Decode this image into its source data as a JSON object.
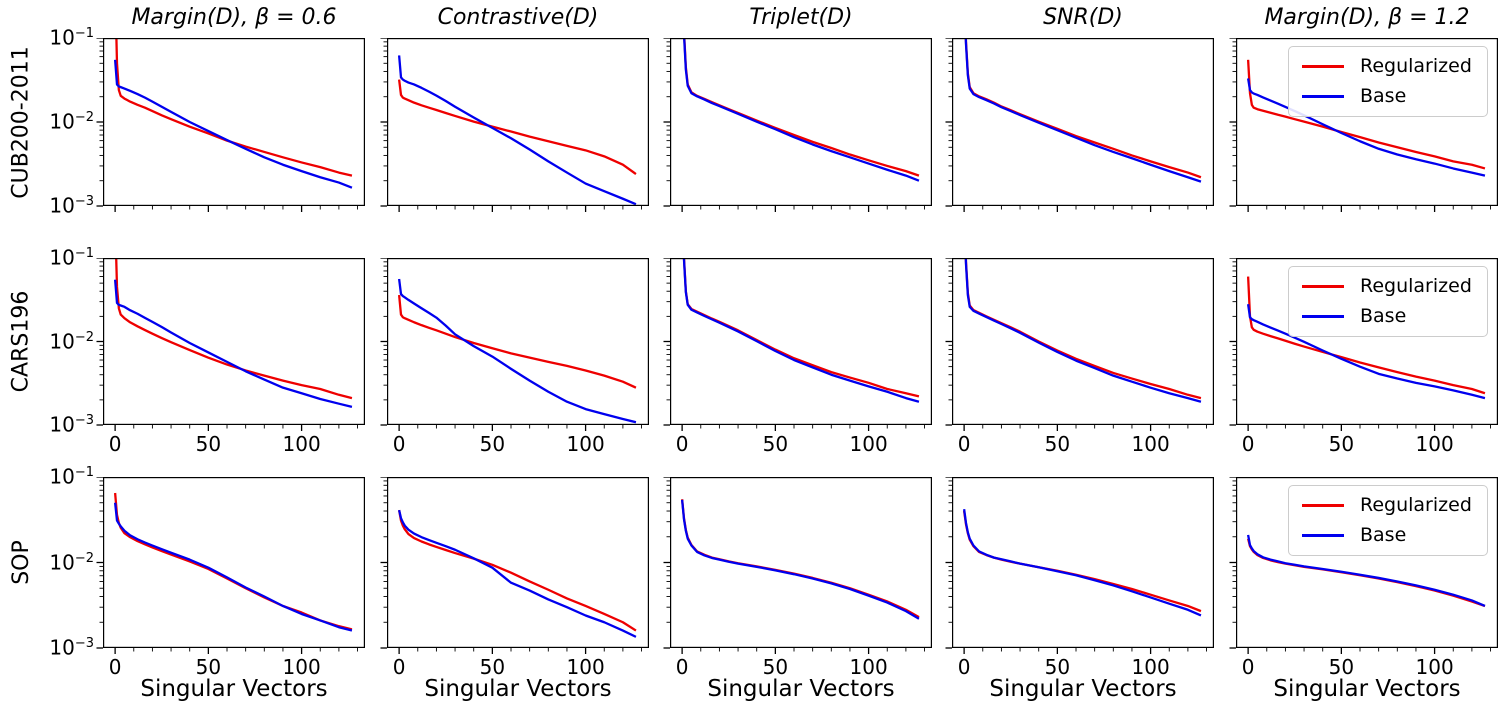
{
  "chart_data": {
    "type": "line",
    "y_scale": "log",
    "xlabel": "Singular Vectors",
    "xlim": [
      -6.5,
      134
    ],
    "ylim": [
      0.001,
      0.1
    ],
    "x_ticks_major": [
      0,
      50,
      100
    ],
    "x_ticks_minor": [
      10,
      20,
      30,
      40,
      60,
      70,
      80,
      90,
      110,
      120,
      130
    ],
    "y_ticks_major_exponents": [
      -1,
      -2,
      -3
    ],
    "row_labels": [
      "CUB200-2011",
      "CARS196",
      "SOP"
    ],
    "col_titles": [
      "Margin(D), β = 0.6",
      "Contrastive(D)",
      "Triplet(D)",
      "SNR(D)",
      "Margin(D), β = 1.2"
    ],
    "legend": {
      "position": "upper right",
      "shown_in_columns": [
        4
      ],
      "entries": [
        {
          "name": "Regularized",
          "color": "#ee0000"
        },
        {
          "name": "Base",
          "color": "#0000ee"
        }
      ]
    },
    "x": [
      0,
      1,
      2,
      3,
      5,
      8,
      12,
      16,
      20,
      25,
      30,
      40,
      50,
      60,
      70,
      80,
      90,
      100,
      110,
      120,
      127
    ],
    "panels": [
      {
        "row": "CUB200-2011",
        "col": "Margin(D), β = 0.6",
        "regularized": [
          0.45,
          0.05,
          0.024,
          0.0205,
          0.019,
          0.0175,
          0.016,
          0.0148,
          0.0135,
          0.012,
          0.0108,
          0.0088,
          0.0073,
          0.006,
          0.0051,
          0.0044,
          0.0038,
          0.0033,
          0.0029,
          0.0025,
          0.0023
        ],
        "base": [
          0.055,
          0.028,
          0.0265,
          0.026,
          0.025,
          0.0235,
          0.0215,
          0.0195,
          0.0175,
          0.0152,
          0.0132,
          0.01,
          0.0078,
          0.0061,
          0.0048,
          0.0038,
          0.0031,
          0.0026,
          0.0022,
          0.0019,
          0.00165
        ]
      },
      {
        "row": "CUB200-2011",
        "col": "Contrastive(D)",
        "regularized": [
          0.032,
          0.021,
          0.0195,
          0.019,
          0.0182,
          0.017,
          0.0158,
          0.0148,
          0.0139,
          0.0128,
          0.0118,
          0.0101,
          0.0088,
          0.0077,
          0.0067,
          0.0059,
          0.0052,
          0.0046,
          0.0039,
          0.0031,
          0.0024
        ],
        "base": [
          0.062,
          0.034,
          0.032,
          0.031,
          0.0295,
          0.028,
          0.0255,
          0.023,
          0.0206,
          0.0178,
          0.0152,
          0.0113,
          0.0085,
          0.0064,
          0.0047,
          0.0034,
          0.0025,
          0.00185,
          0.0015,
          0.00122,
          0.00105
        ]
      },
      {
        "row": "CUB200-2011",
        "col": "Triplet(D)",
        "regularized": [
          0.5,
          0.12,
          0.045,
          0.028,
          0.0225,
          0.0205,
          0.0188,
          0.0172,
          0.0158,
          0.0142,
          0.0128,
          0.0104,
          0.0085,
          0.007,
          0.0058,
          0.0049,
          0.0041,
          0.0035,
          0.003,
          0.0026,
          0.0023
        ],
        "base": [
          0.5,
          0.11,
          0.042,
          0.027,
          0.022,
          0.0202,
          0.0185,
          0.0168,
          0.0155,
          0.0139,
          0.0125,
          0.0101,
          0.0082,
          0.0066,
          0.0054,
          0.0045,
          0.0038,
          0.0032,
          0.0027,
          0.0023,
          0.002
        ]
      },
      {
        "row": "CUB200-2011",
        "col": "SNR(D)",
        "regularized": [
          0.4,
          0.09,
          0.038,
          0.026,
          0.022,
          0.0202,
          0.0186,
          0.017,
          0.0153,
          0.0138,
          0.0124,
          0.0101,
          0.0083,
          0.0068,
          0.0057,
          0.0048,
          0.004,
          0.0034,
          0.0029,
          0.0025,
          0.0022
        ],
        "base": [
          0.38,
          0.085,
          0.036,
          0.025,
          0.0215,
          0.0198,
          0.0182,
          0.0166,
          0.015,
          0.0135,
          0.0121,
          0.0098,
          0.008,
          0.0065,
          0.0053,
          0.0044,
          0.0037,
          0.0031,
          0.0026,
          0.0022,
          0.00195
        ]
      },
      {
        "row": "CUB200-2011",
        "col": "Margin(D), β = 1.2",
        "regularized": [
          0.055,
          0.022,
          0.016,
          0.0148,
          0.0142,
          0.0136,
          0.0129,
          0.0122,
          0.0116,
          0.0108,
          0.0101,
          0.0088,
          0.0076,
          0.0066,
          0.0057,
          0.005,
          0.0044,
          0.0039,
          0.0034,
          0.0031,
          0.0028
        ],
        "base": [
          0.033,
          0.024,
          0.0225,
          0.0218,
          0.021,
          0.0196,
          0.018,
          0.0165,
          0.0151,
          0.0135,
          0.012,
          0.0094,
          0.0074,
          0.0059,
          0.0048,
          0.0041,
          0.0036,
          0.0032,
          0.0028,
          0.0025,
          0.0023
        ]
      },
      {
        "row": "CARS196",
        "col": "Margin(D), β = 0.6",
        "regularized": [
          0.3,
          0.045,
          0.025,
          0.021,
          0.019,
          0.017,
          0.0152,
          0.0137,
          0.0124,
          0.011,
          0.0098,
          0.0079,
          0.0064,
          0.0053,
          0.0045,
          0.0039,
          0.0034,
          0.003,
          0.0027,
          0.0023,
          0.0021
        ],
        "base": [
          0.055,
          0.029,
          0.0275,
          0.027,
          0.026,
          0.0237,
          0.0215,
          0.0192,
          0.0172,
          0.0149,
          0.0128,
          0.0096,
          0.0074,
          0.0057,
          0.0044,
          0.0035,
          0.0028,
          0.0024,
          0.00205,
          0.0018,
          0.00165
        ]
      },
      {
        "row": "CARS196",
        "col": "Contrastive(D)",
        "regularized": [
          0.036,
          0.021,
          0.0195,
          0.019,
          0.0182,
          0.017,
          0.0157,
          0.0146,
          0.0136,
          0.0124,
          0.0113,
          0.0096,
          0.0083,
          0.0072,
          0.0064,
          0.0057,
          0.0051,
          0.0045,
          0.0039,
          0.0033,
          0.0028
        ],
        "base": [
          0.056,
          0.037,
          0.035,
          0.0338,
          0.0315,
          0.0285,
          0.025,
          0.022,
          0.0193,
          0.0155,
          0.0122,
          0.0088,
          0.0066,
          0.0047,
          0.0034,
          0.0025,
          0.0019,
          0.00155,
          0.00135,
          0.00118,
          0.00108
        ]
      },
      {
        "row": "CARS196",
        "col": "Triplet(D)",
        "regularized": [
          0.5,
          0.1,
          0.04,
          0.028,
          0.0245,
          0.0228,
          0.0207,
          0.0188,
          0.0172,
          0.0153,
          0.0136,
          0.0104,
          0.008,
          0.0063,
          0.0052,
          0.0043,
          0.0037,
          0.0032,
          0.0027,
          0.0024,
          0.0022
        ],
        "base": [
          0.5,
          0.095,
          0.039,
          0.0275,
          0.024,
          0.0223,
          0.0202,
          0.0184,
          0.0168,
          0.0149,
          0.0132,
          0.0101,
          0.0077,
          0.006,
          0.0049,
          0.004,
          0.0034,
          0.0029,
          0.0025,
          0.0021,
          0.0019
        ]
      },
      {
        "row": "CARS196",
        "col": "SNR(D)",
        "regularized": [
          0.45,
          0.09,
          0.038,
          0.027,
          0.0238,
          0.0221,
          0.02,
          0.0182,
          0.0166,
          0.0148,
          0.0131,
          0.01,
          0.0078,
          0.0062,
          0.0051,
          0.0042,
          0.0036,
          0.0031,
          0.0027,
          0.0023,
          0.0021
        ],
        "base": [
          0.42,
          0.085,
          0.036,
          0.026,
          0.0233,
          0.0216,
          0.0196,
          0.0178,
          0.0162,
          0.0144,
          0.0127,
          0.0097,
          0.0075,
          0.0059,
          0.0048,
          0.0039,
          0.0033,
          0.0028,
          0.0024,
          0.0021,
          0.0019
        ]
      },
      {
        "row": "CARS196",
        "col": "Margin(D), β = 1.2",
        "regularized": [
          0.06,
          0.02,
          0.0148,
          0.0138,
          0.0131,
          0.0124,
          0.0116,
          0.0109,
          0.0102,
          0.0094,
          0.0087,
          0.0075,
          0.0065,
          0.0056,
          0.0049,
          0.0043,
          0.0038,
          0.0034,
          0.003,
          0.0027,
          0.0024
        ],
        "base": [
          0.028,
          0.0195,
          0.0185,
          0.018,
          0.0172,
          0.016,
          0.0147,
          0.0135,
          0.0124,
          0.0111,
          0.0099,
          0.0078,
          0.0062,
          0.005,
          0.0041,
          0.0036,
          0.0032,
          0.0029,
          0.0026,
          0.0023,
          0.0021
        ]
      },
      {
        "row": "SOP",
        "col": "Margin(D), β = 0.6",
        "regularized": [
          0.065,
          0.036,
          0.029,
          0.0255,
          0.022,
          0.0198,
          0.0178,
          0.0163,
          0.015,
          0.0136,
          0.0124,
          0.0103,
          0.0084,
          0.0065,
          0.005,
          0.0039,
          0.0031,
          0.0026,
          0.0021,
          0.0018,
          0.00165
        ],
        "base": [
          0.05,
          0.031,
          0.0285,
          0.0265,
          0.0235,
          0.0208,
          0.0187,
          0.0171,
          0.0158,
          0.0143,
          0.013,
          0.0108,
          0.0087,
          0.0067,
          0.0051,
          0.004,
          0.0031,
          0.0025,
          0.0021,
          0.00175,
          0.0016
        ]
      },
      {
        "row": "SOP",
        "col": "Contrastive(D)",
        "regularized": [
          0.041,
          0.031,
          0.027,
          0.0245,
          0.0215,
          0.0193,
          0.0176,
          0.0163,
          0.0152,
          0.014,
          0.0129,
          0.0111,
          0.0094,
          0.0076,
          0.006,
          0.0048,
          0.0038,
          0.0031,
          0.0025,
          0.002,
          0.0016
        ],
        "base": [
          0.041,
          0.033,
          0.0295,
          0.027,
          0.0242,
          0.0218,
          0.0198,
          0.0183,
          0.017,
          0.0155,
          0.0141,
          0.0112,
          0.0087,
          0.0058,
          0.0047,
          0.0037,
          0.003,
          0.0024,
          0.002,
          0.0016,
          0.00135
        ]
      },
      {
        "row": "SOP",
        "col": "Triplet(D)",
        "regularized": [
          0.055,
          0.033,
          0.024,
          0.0195,
          0.016,
          0.0135,
          0.0123,
          0.0114,
          0.0109,
          0.0103,
          0.0098,
          0.009,
          0.0082,
          0.0074,
          0.0066,
          0.0058,
          0.005,
          0.0042,
          0.0035,
          0.0028,
          0.0023
        ],
        "base": [
          0.054,
          0.032,
          0.0235,
          0.019,
          0.0158,
          0.0133,
          0.0121,
          0.0113,
          0.0108,
          0.0102,
          0.0097,
          0.0089,
          0.0081,
          0.0073,
          0.0065,
          0.0057,
          0.0049,
          0.0041,
          0.0034,
          0.0027,
          0.0022
        ]
      },
      {
        "row": "SOP",
        "col": "SNR(D)",
        "regularized": [
          0.04,
          0.028,
          0.022,
          0.0185,
          0.0155,
          0.0133,
          0.0122,
          0.0114,
          0.0108,
          0.0102,
          0.0097,
          0.0088,
          0.008,
          0.0072,
          0.0064,
          0.0056,
          0.0049,
          0.0042,
          0.0036,
          0.0031,
          0.0027
        ],
        "base": [
          0.042,
          0.029,
          0.0225,
          0.019,
          0.0158,
          0.0135,
          0.0123,
          0.0114,
          0.0109,
          0.0103,
          0.0097,
          0.0088,
          0.0079,
          0.0071,
          0.0062,
          0.0054,
          0.0046,
          0.0039,
          0.0033,
          0.0028,
          0.0024
        ]
      },
      {
        "row": "SOP",
        "col": "Margin(D), β = 1.2",
        "regularized": [
          0.019,
          0.0155,
          0.0142,
          0.0133,
          0.0122,
          0.0113,
          0.0106,
          0.0101,
          0.0097,
          0.0093,
          0.0089,
          0.0083,
          0.0077,
          0.0071,
          0.0065,
          0.0059,
          0.0053,
          0.0047,
          0.0041,
          0.0035,
          0.0031
        ],
        "base": [
          0.021,
          0.016,
          0.0146,
          0.0136,
          0.0125,
          0.0115,
          0.0108,
          0.0103,
          0.0098,
          0.0094,
          0.009,
          0.0084,
          0.0078,
          0.0072,
          0.0066,
          0.006,
          0.0054,
          0.0048,
          0.0042,
          0.0036,
          0.0031
        ]
      }
    ]
  }
}
